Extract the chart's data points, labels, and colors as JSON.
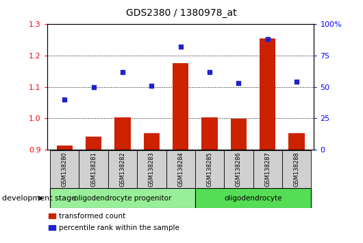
{
  "title": "GDS2380 / 1380978_at",
  "samples": [
    "GSM138280",
    "GSM138281",
    "GSM138282",
    "GSM138283",
    "GSM138284",
    "GSM138285",
    "GSM138286",
    "GSM138287",
    "GSM138288"
  ],
  "transformed_count": [
    0.912,
    0.942,
    1.002,
    0.953,
    1.175,
    1.002,
    0.998,
    1.255,
    0.953
  ],
  "percentile_rank": [
    40,
    50,
    62,
    51,
    82,
    62,
    53,
    88,
    54
  ],
  "ylim_left": [
    0.9,
    1.3
  ],
  "ylim_right": [
    0,
    100
  ],
  "yticks_left": [
    0.9,
    1.0,
    1.1,
    1.2,
    1.3
  ],
  "yticks_right": [
    0,
    25,
    50,
    75,
    100
  ],
  "ytick_labels_right": [
    "0",
    "25",
    "50",
    "75",
    "100%"
  ],
  "bar_color": "#cc2200",
  "scatter_color": "#2222cc",
  "groups": [
    {
      "label": "oligodendrocyte progenitor",
      "start": 0,
      "end": 4,
      "color": "#99ee99"
    },
    {
      "label": "oligodendrocyte",
      "start": 5,
      "end": 8,
      "color": "#55dd55"
    }
  ],
  "legend_items": [
    {
      "label": "transformed count",
      "color": "#cc2200"
    },
    {
      "label": "percentile rank within the sample",
      "color": "#2222cc"
    }
  ],
  "xlabel": "development stage",
  "base_value": 0.9,
  "hgrid_lines": [
    1.0,
    1.1,
    1.2
  ]
}
